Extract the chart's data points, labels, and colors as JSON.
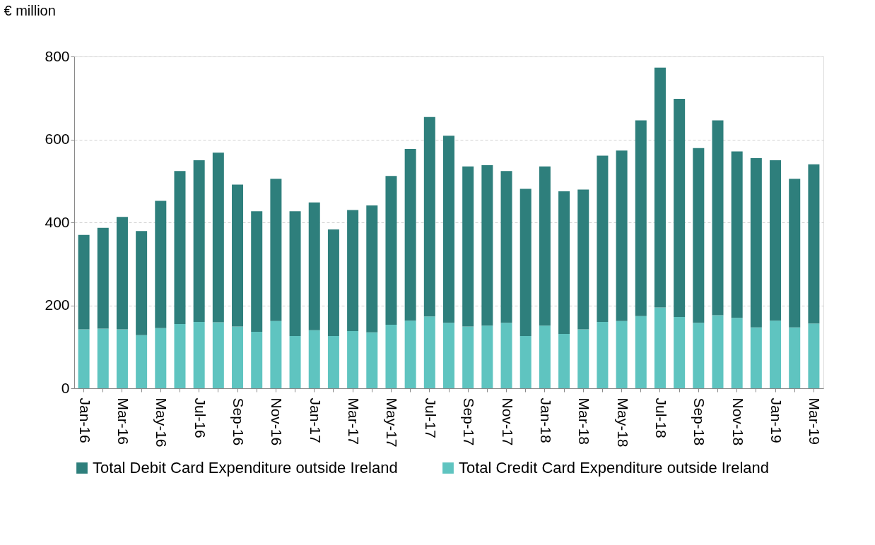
{
  "chart_data": {
    "type": "bar",
    "stacked": true,
    "ylabel": "€ million",
    "categories": [
      "Jan-16",
      null,
      "Mar-16",
      null,
      "May-16",
      null,
      "Jul-16",
      null,
      "Sep-16",
      null,
      "Nov-16",
      null,
      "Jan-17",
      null,
      "Mar-17",
      null,
      "May-17",
      null,
      "Jul-17",
      null,
      "Sep-17",
      null,
      "Nov-17",
      null,
      "Jan-18",
      null,
      "Mar-18",
      null,
      "May-18",
      null,
      "Jul-18",
      null,
      "Sep-18",
      null,
      "Nov-18",
      null,
      "Jan-19",
      null,
      "Mar-19"
    ],
    "series": [
      {
        "name": "Total Credit Card Expenditure outside Ireland",
        "color": "#5fc4c0",
        "values": [
          142,
          144,
          142,
          128,
          145,
          155,
          160,
          159,
          149,
          136,
          162,
          126,
          140,
          126,
          138,
          135,
          153,
          163,
          173,
          158,
          149,
          151,
          158,
          126,
          151,
          131,
          142,
          160,
          162,
          174,
          195,
          172,
          158,
          176,
          170,
          147,
          163,
          147,
          156
        ]
      },
      {
        "name": "Total Debit Card Expenditure outside Ireland",
        "color": "#2e7f7c",
        "values": [
          228,
          243,
          271,
          251,
          307,
          369,
          390,
          409,
          342,
          291,
          343,
          301,
          308,
          257,
          292,
          306,
          359,
          414,
          481,
          451,
          386,
          387,
          366,
          355,
          384,
          344,
          337,
          401,
          411,
          472,
          578,
          526,
          421,
          470,
          401,
          408,
          387,
          358,
          384
        ]
      }
    ],
    "ylim": [
      0,
      800
    ],
    "yticks": [
      0,
      200,
      400,
      600,
      800
    ],
    "grid": "y",
    "legend": "bottom"
  }
}
